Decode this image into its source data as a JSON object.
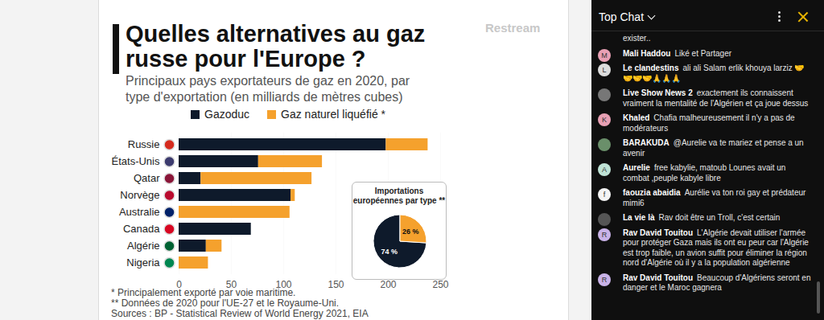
{
  "chart_data": [
    {
      "type": "bar",
      "title": "Quelles alternatives au gaz russe pour l'Europe ?",
      "subtitle": "Principaux pays exportateurs de gaz en 2020, par type d'exportation (en milliards de mètres cubes)",
      "orientation": "horizontal",
      "stacked": true,
      "grid": true,
      "legend": "top",
      "categories": [
        "Russie",
        "États-Unis",
        "Qatar",
        "Norvège",
        "Australie",
        "Canada",
        "Algérie",
        "Nigeria"
      ],
      "series": [
        {
          "name": "Gazoduc",
          "color": "#0e1a2b",
          "values": [
            198,
            76,
            21,
            107,
            0,
            69,
            26,
            0
          ]
        },
        {
          "name": "Gaz naturel liquéfié *",
          "color": "#f5a12d",
          "values": [
            40,
            61,
            106,
            4,
            106,
            0,
            15,
            28
          ]
        }
      ],
      "xlim": [
        0,
        250
      ],
      "xticks": [
        0,
        50,
        100,
        150,
        200,
        250
      ]
    },
    {
      "type": "pie",
      "title": "Importations européennes par type **",
      "categories": [
        "Gazoduc",
        "Gaz naturel liquéfié *"
      ],
      "values": [
        74,
        26
      ],
      "value_labels": [
        "74 %",
        "26 %"
      ],
      "colors": [
        "#0e1a2b",
        "#f5a12d"
      ],
      "data_labels": true
    }
  ],
  "watermark": "Restream",
  "footnotes": [
    "*   Principalement exporté par voie maritime.",
    "** Données de 2020 pour l'UE-27 et le Royaume-Uni.",
    "Sources : BP - Statistical Review of World Energy 2021, EIA"
  ],
  "chat": {
    "header": "Top Chat",
    "messages": [
      {
        "text": "exister.."
      },
      {
        "author": "Mali Haddou",
        "avatar": "M",
        "text": "Liké et Partager"
      },
      {
        "author": "Le clandestins",
        "avatar": "L",
        "text": "ali ali Salam erlik khouya larziz 🤝🤝🤝🤝🙏🙏🙏"
      },
      {
        "author": "Live Show News 2",
        "text": "exactement ils connaissent vraiment la mentalité de l'Algérien et ça joue dessus"
      },
      {
        "author": "Khaled",
        "avatar": "K",
        "text": "Chafia malheureusement il n'y a pas de modérateurs"
      },
      {
        "author": "BARAKUDA",
        "text": "@Aurelie va te mariez et pense a un avenir"
      },
      {
        "author": "Aurelie",
        "avatar": "A",
        "text": "free kabylie, matoub Lounes avait un combat ,peuple kabyle libre"
      },
      {
        "author": "faouzia abaidia",
        "avatar": "f",
        "text": "Aurélie va ton roi gay et prédateur mimi6"
      },
      {
        "author": "La vie là",
        "text": "Rav doit être un Troll, c'est certain"
      },
      {
        "author": "Rav David Touitou",
        "avatar": "R",
        "text": "L'Algérie devait utiliser l'armée pour protéger Gaza mais ils ont eu peur car l'Algérie est trop faible, un avion suffit pour éliminer la région nord d'Algérie où il y a la population algérienne"
      },
      {
        "author": "Rav David Touitou",
        "avatar": "R",
        "text": "Beaucoup d'Algériens seront en danger et le Maroc gagnera"
      }
    ]
  }
}
